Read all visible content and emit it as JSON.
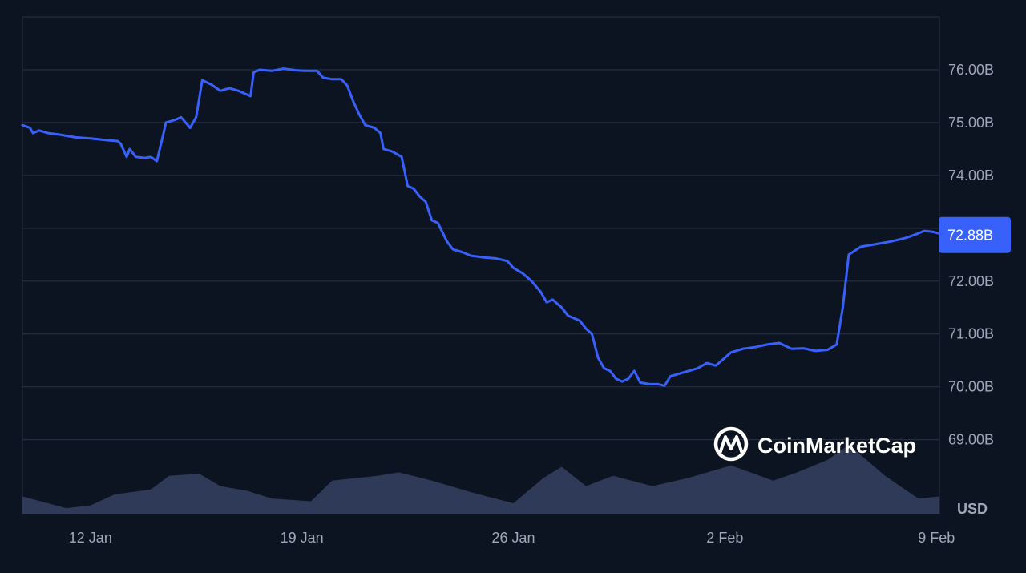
{
  "chart_data": {
    "type": "area",
    "title": "",
    "xlabel": "",
    "ylabel": "",
    "y_unit_label": "USD",
    "x_tick_labels": [
      "12 Jan",
      "19 Jan",
      "26 Jan",
      "2 Feb",
      "9 Feb"
    ],
    "x_tick_days": [
      2,
      9,
      16,
      23,
      30
    ],
    "x_range_days": [
      -0.25,
      30.1
    ],
    "x_note_days": "days counted from 10 Jan",
    "y_tick_labels": [
      "76.00B",
      "75.00B",
      "74.00B",
      "72.00B",
      "71.00B",
      "70.00B",
      "69.00B"
    ],
    "y_tick_values": [
      76,
      75,
      74,
      72,
      71,
      70,
      69
    ],
    "ylim_billions": [
      67.6,
      77.0
    ],
    "grid": true,
    "current_value_label": "72.88B",
    "current_value": 72.88,
    "line_color": "#3861fb",
    "area_color": "#323c5c",
    "series": [
      {
        "kind": "line",
        "points": [
          [
            -0.25,
            74.95
          ],
          [
            0.0,
            74.9
          ],
          [
            0.1,
            74.8
          ],
          [
            0.3,
            74.85
          ],
          [
            0.6,
            74.8
          ],
          [
            1.0,
            74.77
          ],
          [
            1.5,
            74.72
          ],
          [
            2.0,
            74.7
          ],
          [
            2.5,
            74.67
          ],
          [
            2.9,
            74.65
          ],
          [
            3.0,
            74.6
          ],
          [
            3.2,
            74.35
          ],
          [
            3.3,
            74.5
          ],
          [
            3.5,
            74.35
          ],
          [
            3.8,
            74.33
          ],
          [
            4.0,
            74.35
          ],
          [
            4.2,
            74.27
          ],
          [
            4.4,
            74.75
          ],
          [
            4.5,
            75.0
          ],
          [
            4.8,
            75.05
          ],
          [
            5.0,
            75.1
          ],
          [
            5.3,
            74.9
          ],
          [
            5.5,
            75.1
          ],
          [
            5.7,
            75.8
          ],
          [
            6.0,
            75.72
          ],
          [
            6.3,
            75.6
          ],
          [
            6.6,
            75.65
          ],
          [
            6.9,
            75.6
          ],
          [
            7.1,
            75.55
          ],
          [
            7.3,
            75.5
          ],
          [
            7.4,
            75.95
          ],
          [
            7.6,
            76.0
          ],
          [
            8.0,
            75.98
          ],
          [
            8.4,
            76.02
          ],
          [
            8.8,
            75.99
          ],
          [
            9.1,
            75.98
          ],
          [
            9.5,
            75.98
          ],
          [
            9.7,
            75.85
          ],
          [
            10.0,
            75.82
          ],
          [
            10.3,
            75.82
          ],
          [
            10.5,
            75.7
          ],
          [
            10.7,
            75.4
          ],
          [
            10.9,
            75.15
          ],
          [
            11.1,
            74.95
          ],
          [
            11.4,
            74.9
          ],
          [
            11.6,
            74.8
          ],
          [
            11.7,
            74.5
          ],
          [
            12.0,
            74.45
          ],
          [
            12.3,
            74.35
          ],
          [
            12.5,
            73.8
          ],
          [
            12.7,
            73.75
          ],
          [
            12.9,
            73.6
          ],
          [
            13.1,
            73.5
          ],
          [
            13.3,
            73.15
          ],
          [
            13.5,
            73.1
          ],
          [
            13.8,
            72.75
          ],
          [
            14.0,
            72.6
          ],
          [
            14.3,
            72.55
          ],
          [
            14.6,
            72.48
          ],
          [
            15.0,
            72.45
          ],
          [
            15.4,
            72.43
          ],
          [
            15.8,
            72.38
          ],
          [
            16.0,
            72.25
          ],
          [
            16.3,
            72.15
          ],
          [
            16.6,
            72.0
          ],
          [
            16.9,
            71.8
          ],
          [
            17.1,
            71.6
          ],
          [
            17.3,
            71.65
          ],
          [
            17.6,
            71.5
          ],
          [
            17.8,
            71.35
          ],
          [
            18.0,
            71.3
          ],
          [
            18.2,
            71.25
          ],
          [
            18.4,
            71.1
          ],
          [
            18.6,
            71.0
          ],
          [
            18.8,
            70.55
          ],
          [
            19.0,
            70.35
          ],
          [
            19.2,
            70.3
          ],
          [
            19.4,
            70.15
          ],
          [
            19.6,
            70.1
          ],
          [
            19.8,
            70.15
          ],
          [
            20.0,
            70.3
          ],
          [
            20.2,
            70.08
          ],
          [
            20.5,
            70.05
          ],
          [
            20.8,
            70.05
          ],
          [
            21.0,
            70.02
          ],
          [
            21.2,
            70.2
          ],
          [
            21.5,
            70.25
          ],
          [
            21.8,
            70.3
          ],
          [
            22.1,
            70.35
          ],
          [
            22.4,
            70.45
          ],
          [
            22.7,
            70.4
          ],
          [
            23.0,
            70.55
          ],
          [
            23.2,
            70.65
          ],
          [
            23.6,
            70.72
          ],
          [
            24.0,
            70.75
          ],
          [
            24.4,
            70.8
          ],
          [
            24.8,
            70.83
          ],
          [
            25.2,
            70.72
          ],
          [
            25.6,
            70.73
          ],
          [
            26.0,
            70.68
          ],
          [
            26.4,
            70.7
          ],
          [
            26.7,
            70.8
          ],
          [
            26.9,
            71.5
          ],
          [
            27.1,
            72.5
          ],
          [
            27.5,
            72.65
          ],
          [
            28.0,
            72.7
          ],
          [
            28.5,
            72.75
          ],
          [
            29.0,
            72.82
          ],
          [
            29.3,
            72.88
          ],
          [
            29.6,
            72.95
          ],
          [
            29.9,
            72.93
          ],
          [
            30.1,
            72.9
          ]
        ]
      },
      {
        "kind": "volume_area",
        "points": [
          [
            -0.25,
            0.25
          ],
          [
            1.2,
            0.08
          ],
          [
            2.0,
            0.12
          ],
          [
            2.8,
            0.28
          ],
          [
            4.0,
            0.35
          ],
          [
            4.6,
            0.55
          ],
          [
            5.6,
            0.58
          ],
          [
            6.3,
            0.4
          ],
          [
            7.2,
            0.33
          ],
          [
            8.0,
            0.22
          ],
          [
            9.3,
            0.18
          ],
          [
            10.0,
            0.48
          ],
          [
            11.5,
            0.55
          ],
          [
            12.2,
            0.6
          ],
          [
            13.3,
            0.48
          ],
          [
            14.7,
            0.3
          ],
          [
            16.0,
            0.15
          ],
          [
            17.0,
            0.52
          ],
          [
            17.6,
            0.68
          ],
          [
            18.4,
            0.4
          ],
          [
            19.3,
            0.55
          ],
          [
            20.6,
            0.4
          ],
          [
            21.8,
            0.52
          ],
          [
            23.2,
            0.7
          ],
          [
            24.6,
            0.48
          ],
          [
            25.4,
            0.6
          ],
          [
            26.4,
            0.78
          ],
          [
            27.1,
            1.0
          ],
          [
            28.3,
            0.55
          ],
          [
            29.4,
            0.22
          ],
          [
            30.1,
            0.25
          ]
        ]
      }
    ]
  },
  "brand": {
    "name": "CoinMarketCap",
    "icon": "coinmarketcap-logo-icon"
  }
}
